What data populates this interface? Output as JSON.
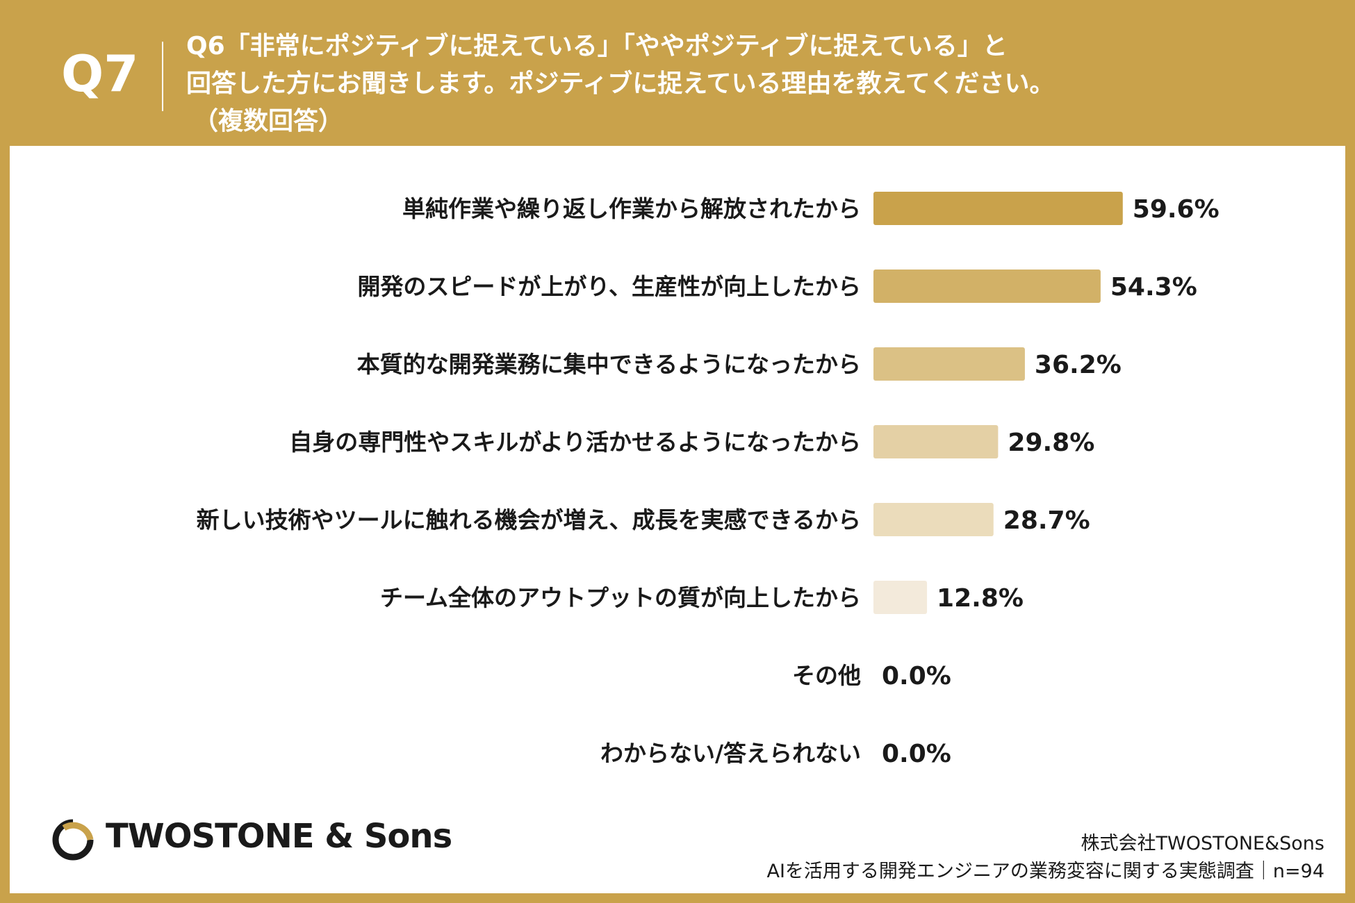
{
  "header": {
    "question_number": "Q7",
    "question_line1": "Q6「非常にポジティブに捉えている」「ややポジティブに捉えている」と",
    "question_line2": "回答した方にお聞きします。ポジティブに捉えている理由を教えてください。",
    "question_note": "（複数回答）"
  },
  "chart_data": {
    "type": "bar",
    "orientation": "horizontal",
    "title": "",
    "xlabel": "",
    "ylabel": "",
    "xlim": [
      0,
      100
    ],
    "unit": "%",
    "categories": [
      "単純作業や繰り返し作業から解放されたから",
      "開発のスピードが上がり、生産性が向上したから",
      "本質的な開発業務に集中できるようになったから",
      "自身の専門性やスキルがより活かせるようになったから",
      "新しい技術やツールに触れる機会が増え、成長を実感できるから",
      "チーム全体のアウトプットの質が向上したから",
      "その他",
      "わからない/答えられない"
    ],
    "values": [
      59.6,
      54.3,
      36.2,
      29.8,
      28.7,
      12.8,
      0.0,
      0.0
    ],
    "value_labels": [
      "59.6%",
      "54.3%",
      "36.2%",
      "29.8%",
      "28.7%",
      "12.8%",
      "0.0%",
      "0.0%"
    ],
    "bar_colors": [
      "#c9a24b",
      "#d2b167",
      "#dbc185",
      "#e4d0a5",
      "#ebdcbb",
      "#f3eadb",
      "#f3eadb",
      "#f3eadb"
    ],
    "grid": false,
    "legend": "none"
  },
  "colors": {
    "background_gold": "#c9a24b",
    "panel": "#ffffff",
    "text": "#1a1a1a"
  },
  "brand": {
    "logo_text": "TWOSTONE & Sons",
    "logo_icon": "ring-logo-icon"
  },
  "footer": {
    "company": "株式会社TWOSTONE&Sons",
    "survey": "AIを活用する開発エンジニアの業務変容に関する実態調査｜n=94"
  }
}
